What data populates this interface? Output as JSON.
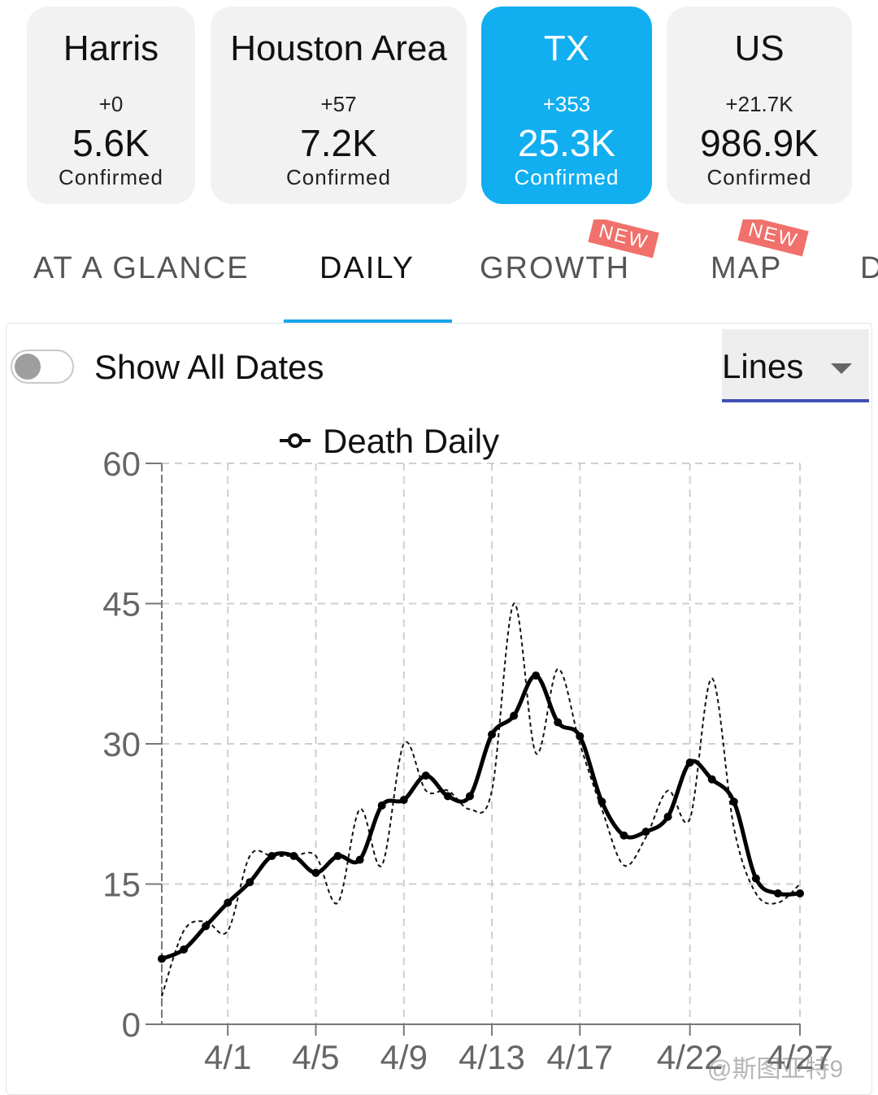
{
  "cards": [
    {
      "name": "Harris",
      "delta": "+0",
      "total": "5.6K",
      "label": "Confirmed",
      "active": false
    },
    {
      "name": "Houston Area",
      "delta": "+57",
      "total": "7.2K",
      "label": "Confirmed",
      "active": false
    },
    {
      "name": "TX",
      "delta": "+353",
      "total": "25.3K",
      "label": "Confirmed",
      "active": true
    },
    {
      "name": "US",
      "delta": "+21.7K",
      "total": "986.9K",
      "label": "Confirmed",
      "active": false
    }
  ],
  "tabs": [
    {
      "label": "AT A GLANCE"
    },
    {
      "label": "DAILY",
      "active": true
    },
    {
      "label": "GROWTH",
      "badge": "NEW"
    },
    {
      "label": "MAP",
      "badge": "NEW"
    },
    {
      "label": "D"
    }
  ],
  "controls": {
    "toggle_label": "Show All Dates",
    "toggle_on": false,
    "chart_style": "Lines"
  },
  "colors": {
    "accent": "#11aef0",
    "badge": "#f0706b",
    "select_underline": "#3f51b5"
  },
  "watermark": "@斯图亚特9",
  "chart_data": {
    "type": "line",
    "legend": [
      "Death Daily"
    ],
    "legend_position": "top-center",
    "grid": true,
    "ylim": [
      0,
      60
    ],
    "yticks": [
      0,
      15,
      30,
      45,
      60
    ],
    "xticks": [
      "4/1",
      "4/5",
      "4/9",
      "4/13",
      "4/17",
      "4/22",
      "4/27"
    ],
    "x": [
      "3/29",
      "3/30",
      "3/31",
      "4/1",
      "4/2",
      "4/3",
      "4/4",
      "4/5",
      "4/6",
      "4/7",
      "4/8",
      "4/9",
      "4/10",
      "4/11",
      "4/12",
      "4/13",
      "4/14",
      "4/15",
      "4/16",
      "4/17",
      "4/18",
      "4/19",
      "4/20",
      "4/21",
      "4/22",
      "4/23",
      "4/24",
      "4/25",
      "4/26",
      "4/27"
    ],
    "series": [
      {
        "name": "Death Daily",
        "style": "dashed",
        "values": [
          3,
          10,
          11,
          10,
          18,
          18,
          18,
          18,
          13,
          23,
          17,
          30,
          25,
          25,
          23,
          25,
          45,
          29,
          38,
          30,
          23,
          17,
          20,
          25,
          22,
          37,
          21,
          14,
          13,
          15
        ]
      },
      {
        "style": "solid-markers",
        "values": [
          7,
          8,
          10.5,
          13,
          15.2,
          18,
          18,
          16.2,
          18,
          17.6,
          23.4,
          24,
          26.6,
          24.4,
          24.4,
          31,
          33,
          37.3,
          32.3,
          30.8,
          23.8,
          20.2,
          20.6,
          22.2,
          28,
          26.2,
          23.8,
          15.6,
          14,
          14
        ]
      }
    ]
  }
}
